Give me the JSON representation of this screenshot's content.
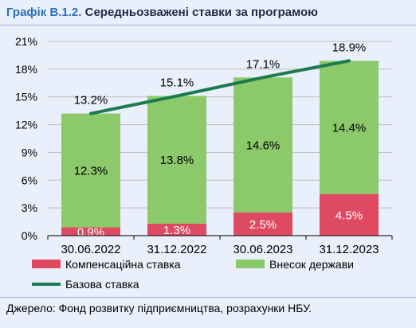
{
  "header": {
    "prefix": "Графік В.1.2.",
    "title": "Середньозважені ставки за програмою"
  },
  "source": "Джерело: Фонд розвитку підприємництва, розрахунки НБУ.",
  "colors": {
    "compensation": "#de4a62",
    "state": "#8cc96b",
    "base": "#1c7a4e",
    "grid": "#bdbdbd"
  },
  "chart_data": {
    "type": "bar",
    "stacked": true,
    "categories": [
      "30.06.2022",
      "31.12.2022",
      "30.06.2023",
      "31.12.2023"
    ],
    "series": [
      {
        "name": "Компенсаційна ставка",
        "type": "bar",
        "values": [
          0.9,
          1.3,
          2.5,
          4.5
        ],
        "labels": [
          "0.9%",
          "1.3%",
          "2.5%",
          "4.5%"
        ]
      },
      {
        "name": "Внесок держави",
        "type": "bar",
        "values": [
          12.3,
          13.8,
          14.6,
          14.4
        ],
        "labels": [
          "12.3%",
          "13.8%",
          "14.6%",
          "14.4%"
        ]
      },
      {
        "name": "Базова ставка",
        "type": "line",
        "values": [
          13.2,
          15.1,
          17.1,
          18.9
        ],
        "labels": [
          "13.2%",
          "15.1%",
          "17.1%",
          "18.9%"
        ]
      }
    ],
    "yticks": [
      "0%",
      "3%",
      "6%",
      "9%",
      "12%",
      "15%",
      "18%",
      "21%"
    ],
    "ylim": [
      0,
      21
    ],
    "grid": true,
    "legend_position": "bottom"
  }
}
